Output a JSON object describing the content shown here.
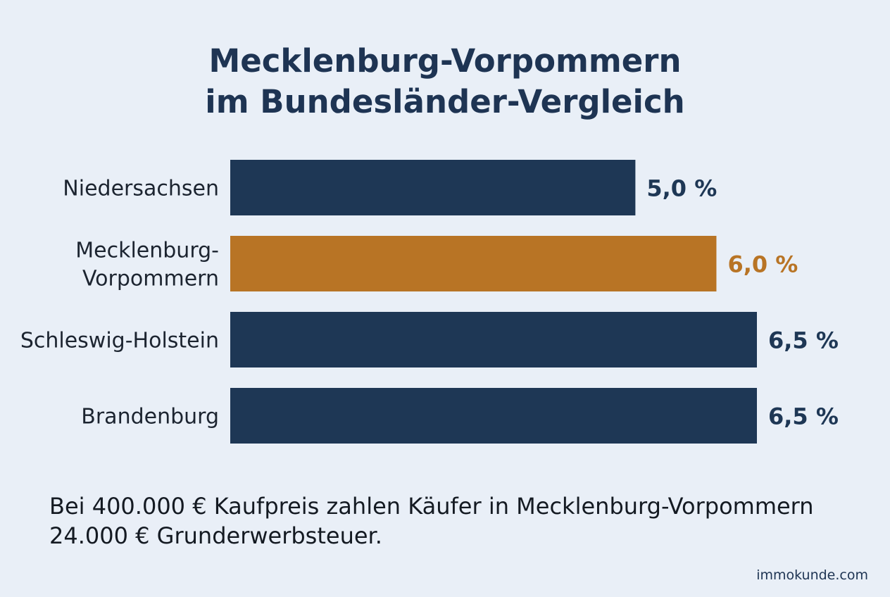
{
  "chart_data": {
    "type": "bar",
    "orientation": "horizontal",
    "title_lines": [
      "Mecklenburg-Vorpommern",
      "im Bundesländer-Vergleich"
    ],
    "categories": [
      [
        "Niedersachsen"
      ],
      [
        "Mecklenburg-",
        "Vorpommern"
      ],
      [
        "Schleswig-Holstein"
      ],
      [
        "Brandenburg"
      ]
    ],
    "values": [
      5.0,
      6.0,
      6.5,
      6.5
    ],
    "value_labels": [
      "5,0 %",
      "6,0 %",
      "6,5 %",
      "6,5 %"
    ],
    "highlight_index": 1,
    "xlim": [
      0,
      6.5
    ],
    "grid": false,
    "legend": "none"
  },
  "colors": {
    "bar": "#1e3755",
    "highlight": "#b87425",
    "background": "#e9eff7",
    "label": "#1c2430"
  },
  "note_lines": [
    "Bei 400.000 € Kaufpreis zahlen Käufer in Mecklenburg-Vorpommern",
    "24.000 € Grunderwerbsteuer."
  ],
  "source": "immokunde.com"
}
